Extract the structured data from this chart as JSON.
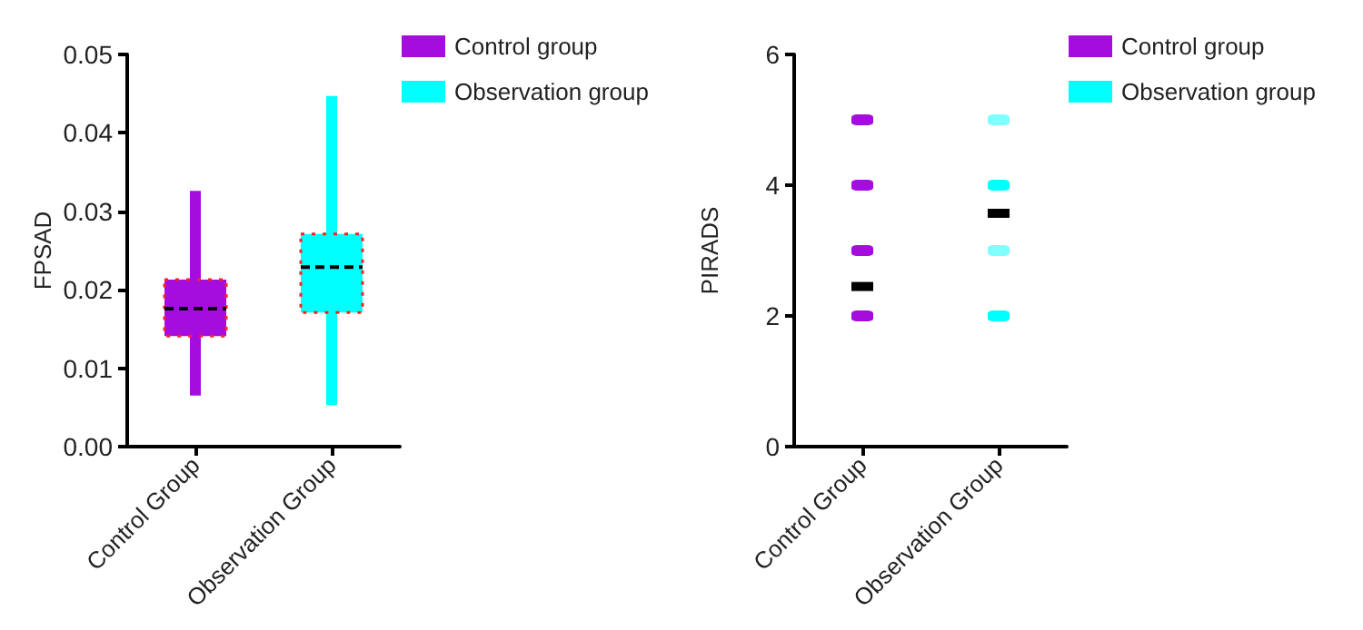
{
  "chart_data": [
    {
      "type": "box",
      "ylabel": "FPSAD",
      "categories": [
        "Control Group",
        "Observation Group"
      ],
      "ylim": [
        0,
        0.05
      ],
      "yticks": [
        {
          "value": 0,
          "label": "0.00"
        },
        {
          "value": 0.01,
          "label": "0.01"
        },
        {
          "value": 0.02,
          "label": "0.02"
        },
        {
          "value": 0.03,
          "label": "0.03"
        },
        {
          "value": 0.04,
          "label": "0.04"
        },
        {
          "value": 0.05,
          "label": "0.05"
        }
      ],
      "legend": "top right",
      "grid": false,
      "series": [
        {
          "name": "Control group",
          "color": "#a50ddf",
          "boxes": [
            {
              "low": 0.0065,
              "q1": 0.0141,
              "median": 0.0176,
              "q3": 0.0213,
              "high": 0.0326
            },
            null
          ]
        },
        {
          "name": "Observation group",
          "color": "#00ffff",
          "boxes": [
            null,
            {
              "low": 0.0053,
              "q1": 0.0171,
              "median": 0.0229,
              "q3": 0.0271,
              "high": 0.0447
            }
          ]
        }
      ]
    },
    {
      "type": "scatter",
      "ylabel": "PIRADS",
      "categories": [
        "Control Group",
        "Observation Group"
      ],
      "ylim": [
        0,
        6
      ],
      "yticks": [
        0,
        2,
        4,
        6
      ],
      "legend": "top right",
      "grid": false,
      "series": [
        {
          "name": "Control group",
          "color": "#a50ddf",
          "x": [
            "Control Group",
            "Control Group",
            "Control Group",
            "Control Group"
          ],
          "values": [
            2,
            3,
            4,
            5
          ]
        },
        {
          "name": "Observation group",
          "color": "#00ffff",
          "x": [
            "Observation Group",
            "Observation Group",
            "Observation Group",
            "Observation Group"
          ],
          "values": [
            2,
            3,
            4,
            5
          ],
          "colors": [
            "#00ffff",
            "#80ffff",
            "#00ffff",
            "#80ffff"
          ]
        },
        {
          "color": "#000000",
          "x": [
            "Control Group",
            "Observation Group"
          ],
          "values": [
            2.45,
            3.57
          ]
        }
      ]
    }
  ]
}
